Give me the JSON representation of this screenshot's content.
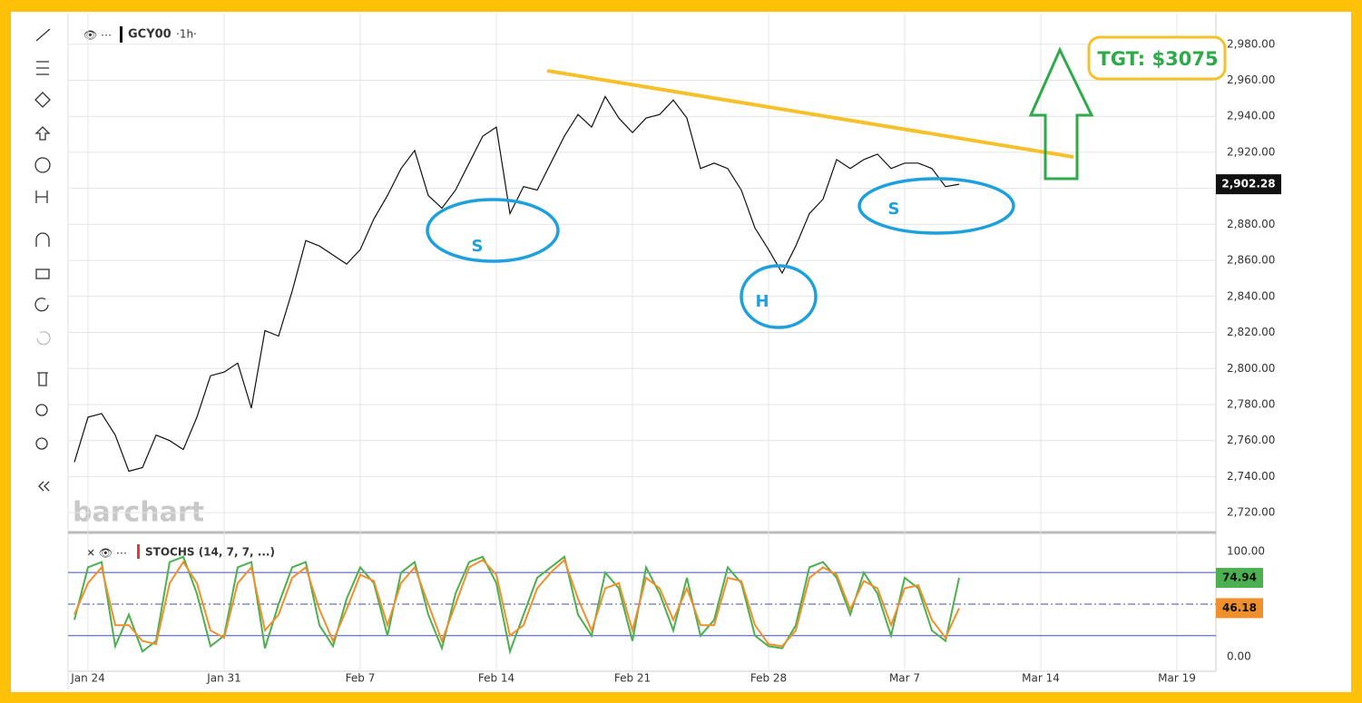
{
  "header": {
    "symbol": "GCY00",
    "interval": "·1h·"
  },
  "watermark": "barchart",
  "annotations": [
    "S",
    "H",
    "S",
    "TGT: $3075"
  ],
  "chart_data": [
    {
      "type": "line",
      "categories": [
        null,
        "Jan 24",
        null,
        null,
        null,
        null,
        null,
        null,
        null,
        null,
        null,
        "Jan 31",
        null,
        null,
        null,
        null,
        null,
        null,
        null,
        null,
        null,
        "Feb 7",
        null,
        null,
        null,
        null,
        null,
        null,
        null,
        null,
        null,
        "Feb 14",
        null,
        null,
        null,
        null,
        null,
        null,
        null,
        null,
        null,
        "Feb 21",
        null,
        null,
        null,
        null,
        null,
        null,
        null,
        null,
        null,
        "Feb 28",
        null,
        null,
        null,
        null,
        null,
        null,
        null,
        null,
        null,
        "Mar 7",
        null,
        null,
        null,
        null,
        null,
        null,
        null,
        null,
        null,
        "Mar 14",
        null,
        null,
        null,
        null,
        null,
        null,
        null,
        null,
        null,
        "Mar 19",
        null,
        null
      ],
      "values": [
        2748,
        2773,
        2775,
        2763,
        2743,
        2745,
        2763,
        2760,
        2755,
        2773,
        2796,
        2798,
        2803,
        2778,
        2821,
        2818,
        2843,
        2871,
        2868,
        2863,
        2858,
        2866,
        2883,
        2896,
        2911,
        2921,
        2896,
        2889,
        2899,
        2914,
        2929,
        2934,
        2886,
        2901,
        2899,
        2914,
        2929,
        2941,
        2934,
        2951,
        2939,
        2931,
        2939,
        2941,
        2949,
        2939,
        2911,
        2914,
        2911,
        2899,
        2878,
        2866,
        2853,
        2868,
        2886,
        2894,
        2916,
        2911,
        2916,
        2919,
        2911,
        2914,
        2914,
        2911,
        2901,
        2902.28,
        null,
        null,
        null,
        null,
        null,
        null,
        null,
        null,
        null,
        null,
        null,
        null,
        null,
        null,
        null,
        null,
        null,
        null
      ],
      "color": "#111111",
      "current_price": {
        "value": 2902.28,
        "label": "2,902.28"
      },
      "ylim": [
        2710,
        2997
      ],
      "yticks": [
        {
          "value": 2720,
          "label": "2,720.00"
        },
        {
          "value": 2740,
          "label": "2,740.00"
        },
        {
          "value": 2760,
          "label": "2,760.00"
        },
        {
          "value": 2780,
          "label": "2,780.00"
        },
        {
          "value": 2800,
          "label": "2,800.00"
        },
        {
          "value": 2820,
          "label": "2,820.00"
        },
        {
          "value": 2840,
          "label": "2,840.00"
        },
        {
          "value": 2860,
          "label": "2,860.00"
        },
        {
          "value": 2880,
          "label": "2,880.00"
        },
        {
          "value": 2900,
          "label": "2,900.00"
        },
        {
          "value": 2920,
          "label": "2,920.00"
        },
        {
          "value": 2940,
          "label": "2,940.00"
        },
        {
          "value": 2960,
          "label": "2,960.00"
        },
        {
          "value": 2980,
          "label": "2,980.00"
        }
      ],
      "grid": true
    },
    {
      "type": "line",
      "title": "STOCHS (14, 7, 7, ...)",
      "series": [
        {
          "color": "#4caf50",
          "values": [
            35,
            85,
            90,
            10,
            40,
            5,
            15,
            90,
            95,
            60,
            10,
            20,
            85,
            90,
            8,
            50,
            85,
            90,
            30,
            10,
            55,
            85,
            70,
            20,
            80,
            90,
            40,
            8,
            60,
            90,
            95,
            70,
            5,
            40,
            75,
            85,
            95,
            40,
            20,
            80,
            65,
            15,
            85,
            60,
            25,
            75,
            20,
            35,
            85,
            70,
            20,
            10,
            8,
            30,
            85,
            90,
            75,
            40,
            80,
            60,
            20,
            75,
            65,
            25,
            15,
            74.94,
            null,
            null,
            null,
            null,
            null,
            null,
            null,
            null,
            null,
            null,
            null,
            null,
            null,
            null,
            null,
            null,
            null,
            null
          ]
        },
        {
          "color": "#f0902c",
          "values": [
            40,
            70,
            85,
            30,
            30,
            15,
            12,
            70,
            90,
            70,
            25,
            18,
            70,
            85,
            25,
            40,
            75,
            85,
            45,
            15,
            45,
            78,
            72,
            30,
            70,
            85,
            50,
            15,
            50,
            85,
            92,
            78,
            20,
            30,
            65,
            80,
            92,
            55,
            25,
            65,
            70,
            25,
            75,
            65,
            35,
            65,
            30,
            30,
            75,
            72,
            30,
            12,
            10,
            25,
            75,
            85,
            78,
            45,
            72,
            65,
            30,
            65,
            68,
            35,
            18,
            46.18,
            null,
            null,
            null,
            null,
            null,
            null,
            null,
            null,
            null,
            null,
            null,
            null,
            null,
            null,
            null,
            null,
            null,
            null
          ]
        }
      ],
      "levels": [
        20,
        50,
        80
      ],
      "ylim": [
        -9.5,
        115.5
      ],
      "yticks": [
        {
          "value": 0,
          "label": "0.00"
        },
        {
          "value": 100,
          "label": "100.00"
        }
      ]
    }
  ]
}
